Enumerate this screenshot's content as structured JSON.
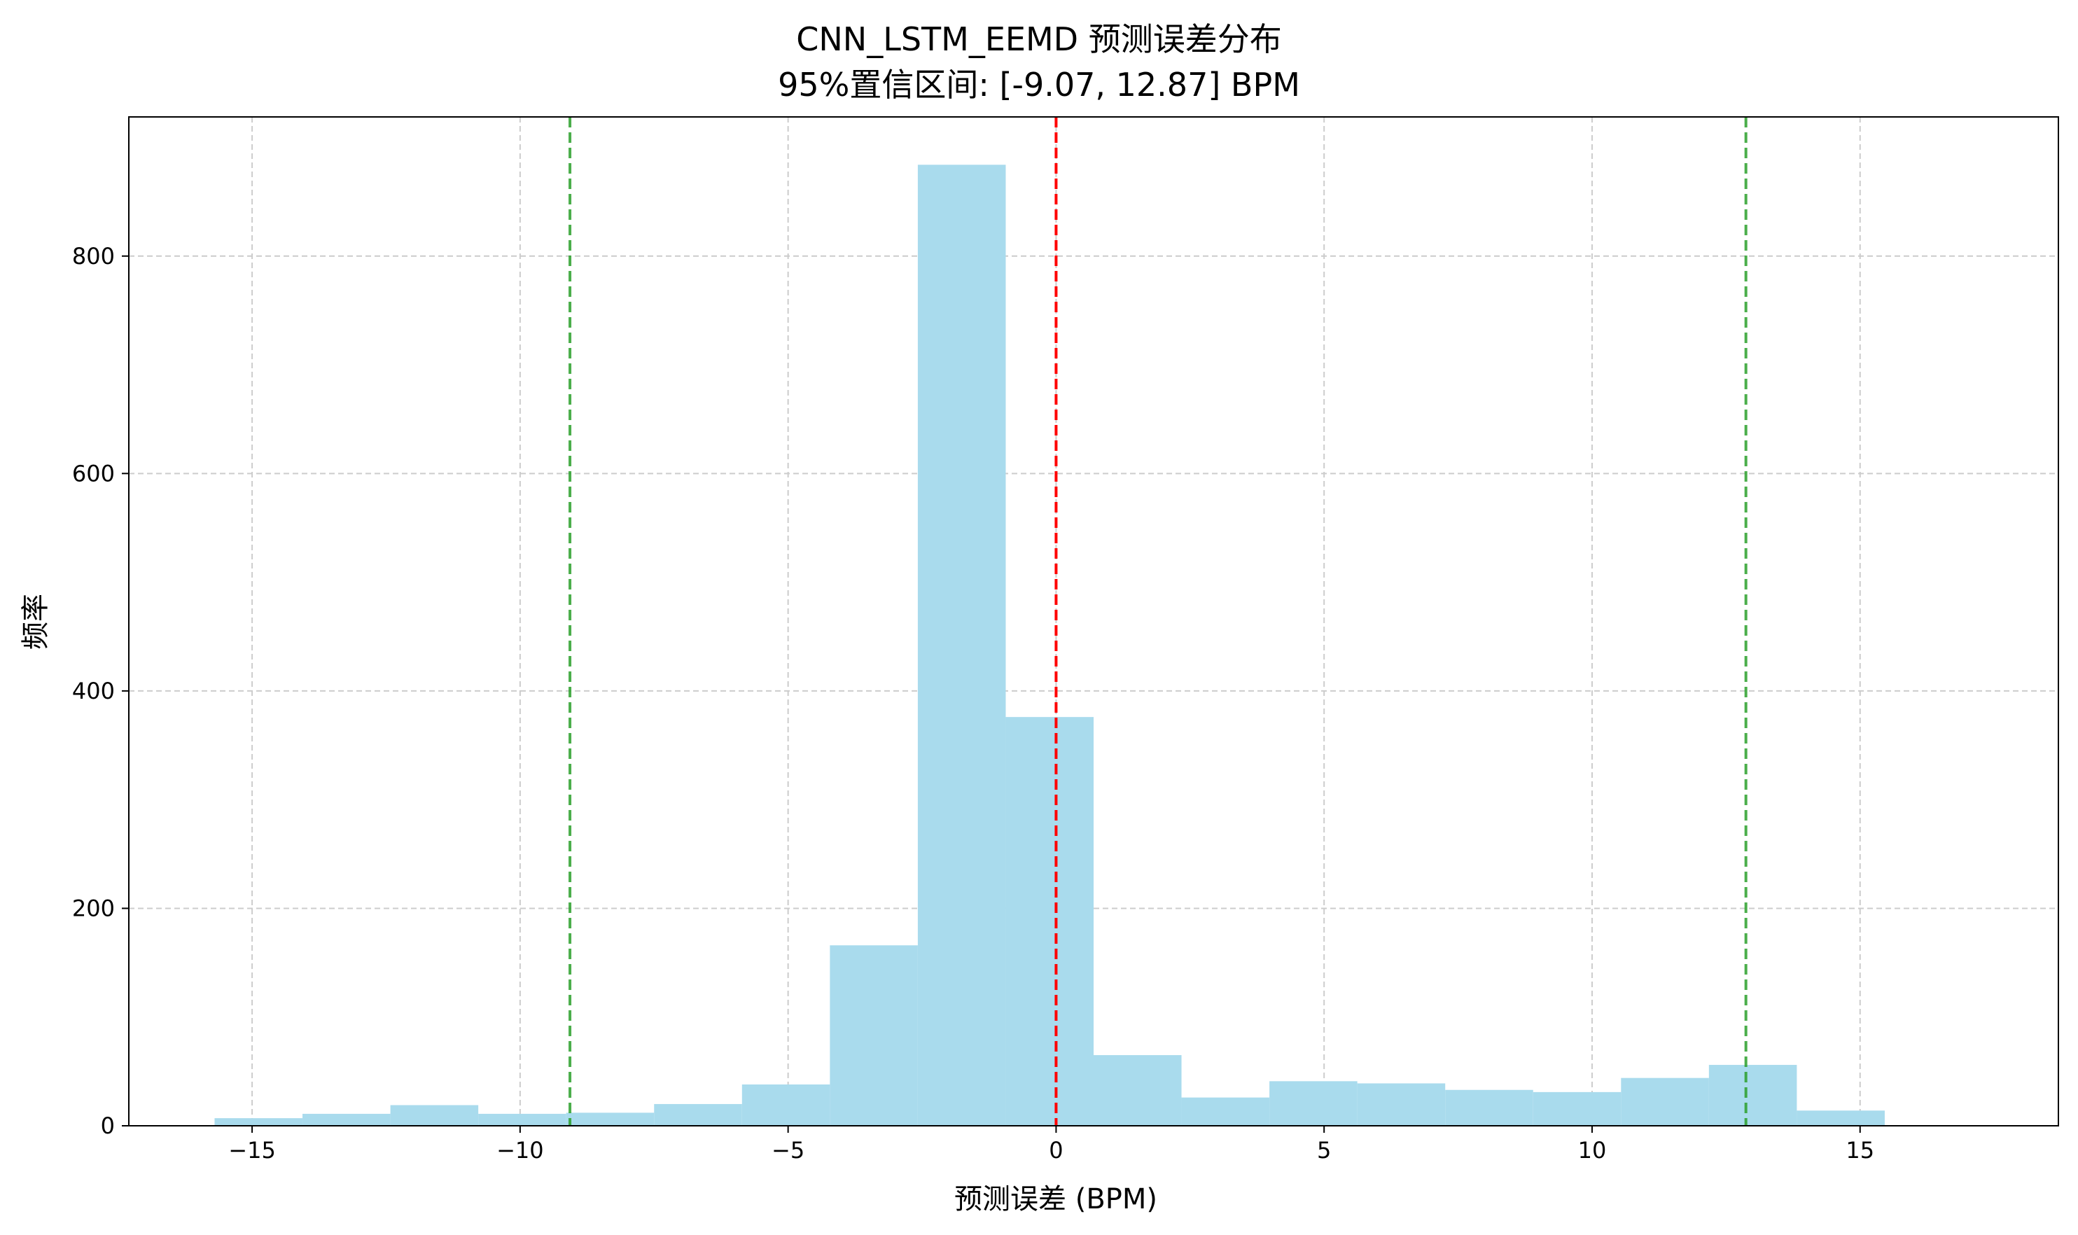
{
  "chart_data": {
    "type": "bar",
    "title": "CNN_LSTM_EEMD 预测误差分布",
    "subtitle": "95%置信区间: [-9.07, 12.87] BPM",
    "xlabel": "预测误差 (BPM)",
    "ylabel": "频率",
    "xlim": [
      -17.3,
      18.7
    ],
    "ylim": [
      0,
      928
    ],
    "xticks": [
      -15,
      -10,
      -5,
      0,
      5,
      10,
      15
    ],
    "xtick_labels": [
      "−15",
      "−10",
      "−5",
      "0",
      "5",
      "10",
      "15"
    ],
    "yticks": [
      0,
      200,
      400,
      600,
      800
    ],
    "ytick_labels": [
      "0",
      "200",
      "400",
      "600",
      "800"
    ],
    "grid": true,
    "bin_edges": [
      -15.7,
      -14.06,
      -12.42,
      -10.78,
      -9.14,
      -7.5,
      -5.86,
      -4.22,
      -2.58,
      -0.94,
      0.7,
      2.34,
      3.98,
      5.62,
      7.26,
      8.9,
      10.54,
      12.18,
      13.82,
      15.46
    ],
    "values": [
      7,
      11,
      19,
      11,
      12,
      20,
      38,
      166,
      884,
      376,
      65,
      26,
      41,
      39,
      33,
      31,
      44,
      56,
      14
    ],
    "vlines": [
      {
        "x": 0,
        "color": "#ff0000",
        "style": "dashed"
      },
      {
        "x": -9.07,
        "color": "#2ca02c",
        "style": "dashed"
      },
      {
        "x": 12.87,
        "color": "#2ca02c",
        "style": "dashed"
      }
    ],
    "colors": {
      "bars": "#a9dbed",
      "grid": "#cccccc",
      "axes": "#000000"
    }
  }
}
